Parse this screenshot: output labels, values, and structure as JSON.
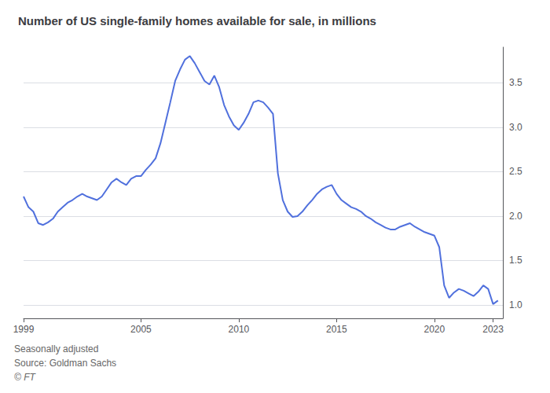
{
  "chart_data": {
    "type": "line",
    "title": "Number of US single-family homes available for sale, in millions",
    "annotations": [
      "Seasonally adjusted",
      "Source: Goldman Sachs",
      "© FT"
    ],
    "x": [
      1999.0,
      1999.25,
      1999.5,
      1999.75,
      2000.0,
      2000.25,
      2000.5,
      2000.75,
      2001.0,
      2001.25,
      2001.5,
      2001.75,
      2002.0,
      2002.25,
      2002.5,
      2002.75,
      2003.0,
      2003.25,
      2003.5,
      2003.75,
      2004.0,
      2004.25,
      2004.5,
      2004.75,
      2005.0,
      2005.25,
      2005.5,
      2005.75,
      2006.0,
      2006.25,
      2006.5,
      2006.75,
      2007.0,
      2007.25,
      2007.5,
      2007.75,
      2008.0,
      2008.25,
      2008.5,
      2008.75,
      2009.0,
      2009.25,
      2009.5,
      2009.75,
      2010.0,
      2010.25,
      2010.5,
      2010.75,
      2011.0,
      2011.25,
      2011.5,
      2011.75,
      2012.0,
      2012.25,
      2012.5,
      2012.75,
      2013.0,
      2013.25,
      2013.5,
      2013.75,
      2014.0,
      2014.25,
      2014.5,
      2014.75,
      2015.0,
      2015.25,
      2015.5,
      2015.75,
      2016.0,
      2016.25,
      2016.5,
      2016.75,
      2017.0,
      2017.25,
      2017.5,
      2017.75,
      2018.0,
      2018.25,
      2018.5,
      2018.75,
      2019.0,
      2019.25,
      2019.5,
      2019.75,
      2020.0,
      2020.25,
      2020.5,
      2020.75,
      2021.0,
      2021.25,
      2021.5,
      2021.75,
      2022.0,
      2022.25,
      2022.5,
      2022.75,
      2023.0,
      2023.25
    ],
    "values": [
      2.22,
      2.1,
      2.05,
      1.92,
      1.9,
      1.93,
      1.97,
      2.05,
      2.1,
      2.15,
      2.18,
      2.22,
      2.25,
      2.22,
      2.2,
      2.18,
      2.22,
      2.3,
      2.38,
      2.42,
      2.38,
      2.35,
      2.42,
      2.45,
      2.45,
      2.52,
      2.58,
      2.65,
      2.82,
      3.05,
      3.28,
      3.52,
      3.65,
      3.76,
      3.8,
      3.72,
      3.62,
      3.52,
      3.48,
      3.58,
      3.45,
      3.25,
      3.12,
      3.02,
      2.97,
      3.05,
      3.15,
      3.28,
      3.3,
      3.28,
      3.22,
      3.15,
      2.48,
      2.18,
      2.05,
      1.99,
      2.0,
      2.05,
      2.12,
      2.18,
      2.25,
      2.3,
      2.33,
      2.35,
      2.25,
      2.18,
      2.14,
      2.1,
      2.08,
      2.05,
      2.0,
      1.97,
      1.93,
      1.9,
      1.87,
      1.85,
      1.85,
      1.88,
      1.9,
      1.92,
      1.88,
      1.85,
      1.82,
      1.8,
      1.78,
      1.65,
      1.22,
      1.08,
      1.14,
      1.18,
      1.16,
      1.13,
      1.1,
      1.15,
      1.22,
      1.18,
      1.01,
      1.05
    ],
    "xlim": [
      1999,
      2023.5
    ],
    "ylim": [
      0.85,
      3.9
    ],
    "xticks": [
      1999,
      2005,
      2010,
      2015,
      2020,
      2023
    ],
    "yticks": [
      {
        "value": 1.0,
        "label": "1.0"
      },
      {
        "value": 1.5,
        "label": "1.5"
      },
      {
        "value": 2.0,
        "label": "2.0"
      },
      {
        "value": 2.5,
        "label": "2.5"
      },
      {
        "value": 3.0,
        "label": "3.0"
      },
      {
        "value": 3.5,
        "label": "3.5"
      }
    ],
    "grid": true
  }
}
